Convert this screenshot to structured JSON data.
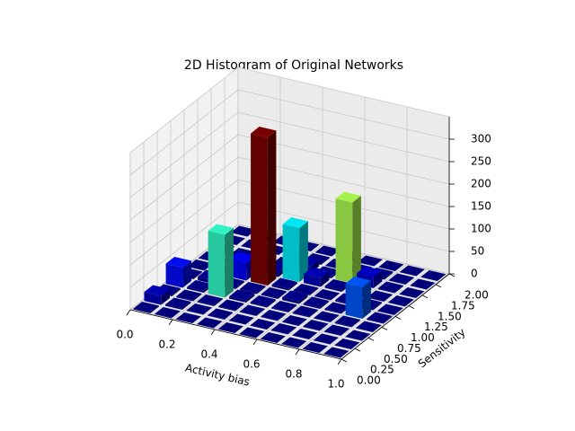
{
  "chart_data": {
    "type": "bar3d",
    "title": "2D Histogram of Original Networks",
    "xlabel": "Activity bias",
    "ylabel": "Sensitivity",
    "colormap": "jet",
    "xbins": [
      0,
      0.1,
      0.2,
      0.3,
      0.4,
      0.5,
      0.6,
      0.7,
      0.8,
      0.9,
      1.0
    ],
    "ybins": [
      0,
      0.2,
      0.4,
      0.6,
      0.8,
      1.0,
      1.2,
      1.4,
      1.6,
      1.8,
      2.0
    ],
    "counts": [
      [
        2,
        20,
        3,
        45,
        2,
        1,
        0,
        1,
        0,
        0
      ],
      [
        1,
        3,
        2,
        4,
        8,
        2,
        1,
        0,
        0,
        0
      ],
      [
        0,
        1,
        2,
        140,
        3,
        40,
        2,
        1,
        0,
        0
      ],
      [
        0,
        1,
        2,
        5,
        3,
        330,
        10,
        2,
        1,
        0
      ],
      [
        0,
        0,
        1,
        3,
        2,
        4,
        120,
        15,
        2,
        0
      ],
      [
        0,
        0,
        1,
        2,
        6,
        2,
        20,
        3,
        1,
        0
      ],
      [
        0,
        1,
        0,
        2,
        3,
        1,
        4,
        180,
        2,
        0
      ],
      [
        0,
        0,
        1,
        1,
        2,
        3,
        2,
        25,
        3,
        0
      ],
      [
        0,
        0,
        1,
        2,
        70,
        3,
        1,
        2,
        1,
        0
      ],
      [
        0,
        0,
        0,
        1,
        2,
        1,
        1,
        0,
        0,
        0
      ]
    ],
    "xlim": [
      0,
      1
    ],
    "ylim": [
      0,
      2
    ],
    "zlim": [
      0,
      350
    ],
    "xticks": [
      {
        "value": 0,
        "label": "0.0"
      },
      0.2,
      0.4,
      0.6,
      0.8,
      {
        "value": 1,
        "label": "1.0"
      }
    ],
    "yticks": [
      {
        "value": 0,
        "label": "0.00"
      },
      0.25,
      {
        "value": 0.5,
        "label": "0.50"
      },
      0.75,
      {
        "value": 1,
        "label": "1.00"
      },
      1.25,
      {
        "value": 1.5,
        "label": "1.50"
      },
      1.75,
      {
        "value": 2,
        "label": "2.00"
      }
    ],
    "zticks": [
      0,
      50,
      100,
      150,
      200,
      250,
      300
    ],
    "grid": true
  }
}
